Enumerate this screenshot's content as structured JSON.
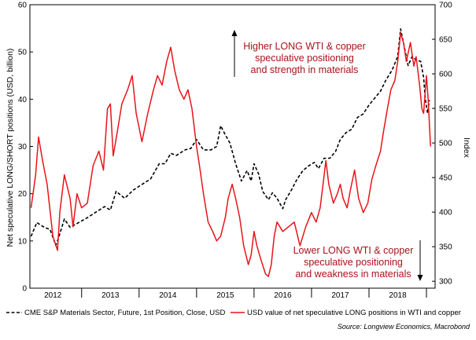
{
  "chart_data": {
    "type": "line",
    "left_axis": {
      "label": "Net speculative LONG/SHORT positions (USD, billion)",
      "ylim": [
        0,
        60
      ],
      "ticks": [
        0,
        10,
        20,
        30,
        40,
        50,
        60
      ]
    },
    "right_axis": {
      "label": "Index",
      "ylim": [
        290,
        700
      ],
      "ticks": [
        300,
        350,
        400,
        450,
        500,
        550,
        600,
        650,
        700
      ]
    },
    "x_axis": {
      "range": [
        2011.6,
        2018.65
      ],
      "year_labels": [
        {
          "label": "2012",
          "x": 2012.0
        },
        {
          "label": "2013",
          "x": 2013.0
        },
        {
          "label": "2014",
          "x": 2014.0
        },
        {
          "label": "2015",
          "x": 2015.0
        },
        {
          "label": "2016",
          "x": 2016.0
        },
        {
          "label": "2017",
          "x": 2017.0
        },
        {
          "label": "2018",
          "x": 2018.0
        }
      ],
      "boundaries": [
        2011.5,
        2012.5,
        2013.5,
        2014.5,
        2015.5,
        2016.5,
        2017.5,
        2018.5
      ]
    },
    "grid": false,
    "series": [
      {
        "name": "CME S&P Materials Sector, Future, 1st Position, Close, USD",
        "axis": "right",
        "color": "#000000",
        "style": "dashed",
        "points": [
          [
            2011.62,
            365
          ],
          [
            2011.72,
            385
          ],
          [
            2011.85,
            378
          ],
          [
            2011.95,
            375
          ],
          [
            2012.05,
            352
          ],
          [
            2012.1,
            363
          ],
          [
            2012.2,
            390
          ],
          [
            2012.3,
            378
          ],
          [
            2012.45,
            385
          ],
          [
            2012.6,
            392
          ],
          [
            2012.75,
            400
          ],
          [
            2012.9,
            408
          ],
          [
            2013.0,
            403
          ],
          [
            2013.1,
            430
          ],
          [
            2013.25,
            420
          ],
          [
            2013.4,
            432
          ],
          [
            2013.55,
            440
          ],
          [
            2013.7,
            448
          ],
          [
            2013.85,
            470
          ],
          [
            2013.95,
            470
          ],
          [
            2014.05,
            485
          ],
          [
            2014.15,
            482
          ],
          [
            2014.3,
            490
          ],
          [
            2014.4,
            492
          ],
          [
            2014.5,
            505
          ],
          [
            2014.62,
            490
          ],
          [
            2014.75,
            490
          ],
          [
            2014.85,
            495
          ],
          [
            2014.92,
            525
          ],
          [
            2014.98,
            515
          ],
          [
            2015.08,
            500
          ],
          [
            2015.18,
            470
          ],
          [
            2015.28,
            445
          ],
          [
            2015.38,
            460
          ],
          [
            2015.45,
            445
          ],
          [
            2015.5,
            470
          ],
          [
            2015.58,
            455
          ],
          [
            2015.65,
            430
          ],
          [
            2015.75,
            418
          ],
          [
            2015.82,
            428
          ],
          [
            2015.9,
            420
          ],
          [
            2016.0,
            405
          ],
          [
            2016.05,
            418
          ],
          [
            2016.15,
            432
          ],
          [
            2016.25,
            448
          ],
          [
            2016.35,
            460
          ],
          [
            2016.45,
            467
          ],
          [
            2016.55,
            472
          ],
          [
            2016.62,
            463
          ],
          [
            2016.72,
            478
          ],
          [
            2016.82,
            478
          ],
          [
            2016.92,
            488
          ],
          [
            2017.0,
            505
          ],
          [
            2017.1,
            515
          ],
          [
            2017.2,
            520
          ],
          [
            2017.3,
            537
          ],
          [
            2017.4,
            542
          ],
          [
            2017.5,
            555
          ],
          [
            2017.6,
            565
          ],
          [
            2017.7,
            575
          ],
          [
            2017.8,
            592
          ],
          [
            2017.9,
            605
          ],
          [
            2018.0,
            625
          ],
          [
            2018.05,
            665
          ],
          [
            2018.1,
            645
          ],
          [
            2018.18,
            612
          ],
          [
            2018.25,
            625
          ],
          [
            2018.32,
            620
          ],
          [
            2018.4,
            618
          ],
          [
            2018.45,
            595
          ],
          [
            2018.48,
            563
          ],
          [
            2018.52,
            543
          ],
          [
            2018.55,
            562
          ]
        ]
      },
      {
        "name": "USD value of net speculative LONG positions in WTI and copper",
        "axis": "left",
        "color": "#e8141b",
        "style": "solid",
        "points": [
          [
            2011.62,
            17
          ],
          [
            2011.7,
            24
          ],
          [
            2011.75,
            32
          ],
          [
            2011.82,
            27
          ],
          [
            2011.9,
            22
          ],
          [
            2012.0,
            11
          ],
          [
            2012.08,
            8
          ],
          [
            2012.12,
            16
          ],
          [
            2012.2,
            24
          ],
          [
            2012.3,
            19
          ],
          [
            2012.35,
            13
          ],
          [
            2012.42,
            20
          ],
          [
            2012.5,
            17
          ],
          [
            2012.6,
            18
          ],
          [
            2012.7,
            26
          ],
          [
            2012.8,
            29
          ],
          [
            2012.88,
            25
          ],
          [
            2012.95,
            38
          ],
          [
            2013.0,
            39
          ],
          [
            2013.05,
            28
          ],
          [
            2013.12,
            33
          ],
          [
            2013.2,
            39
          ],
          [
            2013.3,
            42
          ],
          [
            2013.38,
            45
          ],
          [
            2013.45,
            37
          ],
          [
            2013.55,
            31
          ],
          [
            2013.65,
            37
          ],
          [
            2013.75,
            42
          ],
          [
            2013.82,
            45
          ],
          [
            2013.9,
            43
          ],
          [
            2013.98,
            48
          ],
          [
            2014.05,
            51
          ],
          [
            2014.12,
            46
          ],
          [
            2014.2,
            42
          ],
          [
            2014.28,
            40
          ],
          [
            2014.35,
            42
          ],
          [
            2014.42,
            38
          ],
          [
            2014.5,
            30
          ],
          [
            2014.55,
            26
          ],
          [
            2014.62,
            20
          ],
          [
            2014.7,
            14
          ],
          [
            2014.78,
            12
          ],
          [
            2014.85,
            10
          ],
          [
            2014.92,
            11
          ],
          [
            2015.0,
            15
          ],
          [
            2015.05,
            19
          ],
          [
            2015.12,
            22
          ],
          [
            2015.18,
            19
          ],
          [
            2015.25,
            15
          ],
          [
            2015.32,
            9
          ],
          [
            2015.4,
            5
          ],
          [
            2015.45,
            7
          ],
          [
            2015.5,
            12
          ],
          [
            2015.55,
            9
          ],
          [
            2015.62,
            6
          ],
          [
            2015.7,
            3
          ],
          [
            2015.75,
            2.5
          ],
          [
            2015.8,
            5
          ],
          [
            2015.85,
            11
          ],
          [
            2015.9,
            14
          ],
          [
            2016.0,
            12
          ],
          [
            2016.1,
            13
          ],
          [
            2016.2,
            14
          ],
          [
            2016.3,
            9
          ],
          [
            2016.4,
            13
          ],
          [
            2016.5,
            16
          ],
          [
            2016.58,
            14
          ],
          [
            2016.65,
            17
          ],
          [
            2016.7,
            22
          ],
          [
            2016.75,
            27
          ],
          [
            2016.8,
            22
          ],
          [
            2016.88,
            18
          ],
          [
            2016.95,
            20
          ],
          [
            2017.0,
            22
          ],
          [
            2017.05,
            19
          ],
          [
            2017.12,
            17
          ],
          [
            2017.18,
            21
          ],
          [
            2017.25,
            25
          ],
          [
            2017.32,
            19
          ],
          [
            2017.4,
            16
          ],
          [
            2017.48,
            18
          ],
          [
            2017.55,
            23
          ],
          [
            2017.62,
            26
          ],
          [
            2017.7,
            29
          ],
          [
            2017.75,
            33
          ],
          [
            2017.82,
            38
          ],
          [
            2017.88,
            42
          ],
          [
            2017.95,
            44
          ],
          [
            2018.0,
            48
          ],
          [
            2018.05,
            54
          ],
          [
            2018.1,
            52
          ],
          [
            2018.15,
            48
          ],
          [
            2018.22,
            52
          ],
          [
            2018.28,
            47
          ],
          [
            2018.32,
            49
          ],
          [
            2018.38,
            43
          ],
          [
            2018.42,
            38
          ],
          [
            2018.45,
            37
          ],
          [
            2018.5,
            45
          ],
          [
            2018.53,
            40
          ],
          [
            2018.57,
            30
          ]
        ]
      }
    ],
    "annotations": {
      "upper": {
        "lines": [
          "Higher LONG WTI & copper",
          "speculative positioning",
          "and strength in materials"
        ],
        "arrow": "up",
        "color": "#a8121b"
      },
      "lower": {
        "lines": [
          "Lower LONG WTI & copper",
          "speculative positioning",
          "and weakness in materials"
        ],
        "arrow": "down",
        "color": "#a8121b"
      }
    },
    "legend": {
      "placement": "bottom",
      "items": [
        {
          "label": "CME S&P Materials Sector, Future, 1st Position, Close, USD",
          "style": "dashed",
          "color": "#000000"
        },
        {
          "label": "USD value of net speculative LONG positions in WTI and copper",
          "style": "solid",
          "color": "#e8141b"
        }
      ]
    },
    "source": "Source: Longview Economics, Macrobond"
  }
}
